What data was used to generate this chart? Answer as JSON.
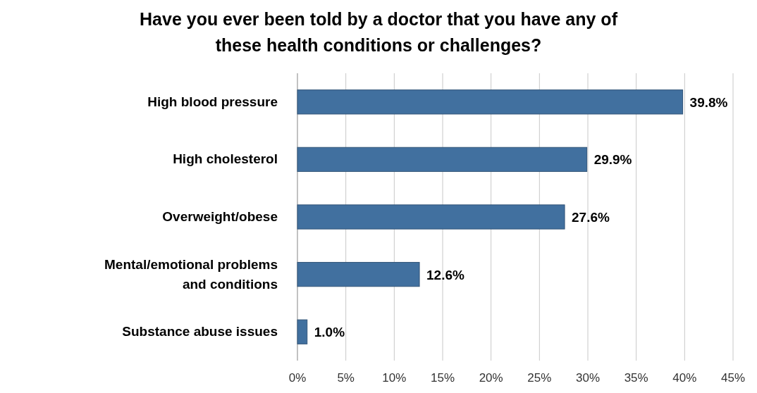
{
  "chart_data": {
    "type": "bar",
    "orientation": "horizontal",
    "title": "Have you ever been told by a doctor that you have any of these health conditions or challenges?",
    "categories": [
      "High blood pressure",
      "High cholesterol",
      "Overweight/obese",
      "Mental/emotional problems and conditions",
      "Substance abuse issues"
    ],
    "values": [
      39.8,
      29.9,
      27.6,
      12.6,
      1.0
    ],
    "value_labels": [
      "39.8%",
      "29.9%",
      "27.6%",
      "12.6%",
      "1.0%"
    ],
    "color": "#41709f",
    "xlim": [
      0,
      45
    ],
    "xticks": [
      {
        "value": 0,
        "label": "0%"
      },
      {
        "value": 5,
        "label": "5%"
      },
      {
        "value": 10,
        "label": "10%"
      },
      {
        "value": 15,
        "label": "15%"
      },
      {
        "value": 20,
        "label": "20%"
      },
      {
        "value": 25,
        "label": "25%"
      },
      {
        "value": 30,
        "label": "30%"
      },
      {
        "value": 35,
        "label": "35%"
      },
      {
        "value": 40,
        "label": "40%"
      },
      {
        "value": 45,
        "label": "45%"
      }
    ],
    "grid": "x"
  }
}
